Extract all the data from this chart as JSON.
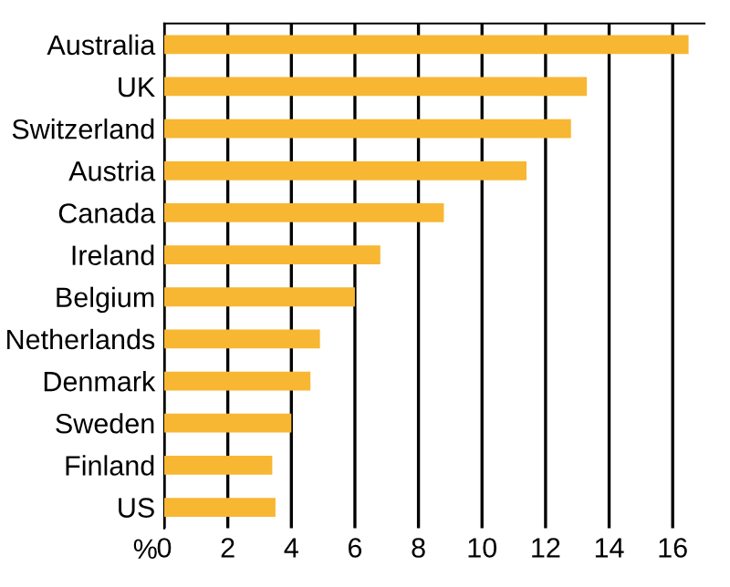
{
  "chart_data": {
    "type": "bar",
    "orientation": "horizontal",
    "xlabel": "%",
    "categories": [
      "Australia",
      "UK",
      "Switzerland",
      "Austria",
      "Canada",
      "Ireland",
      "Belgium",
      "Netherlands",
      "Denmark",
      "Sweden",
      "Finland",
      "US"
    ],
    "values": [
      16.5,
      13.3,
      12.8,
      11.4,
      8.8,
      6.8,
      6.0,
      4.9,
      4.6,
      4.0,
      3.4,
      3.5
    ],
    "color": "#f7b733",
    "xlim": [
      0,
      17
    ],
    "xticks": [
      0,
      2,
      4,
      6,
      8,
      10,
      12,
      14,
      16
    ],
    "grid": "x"
  }
}
